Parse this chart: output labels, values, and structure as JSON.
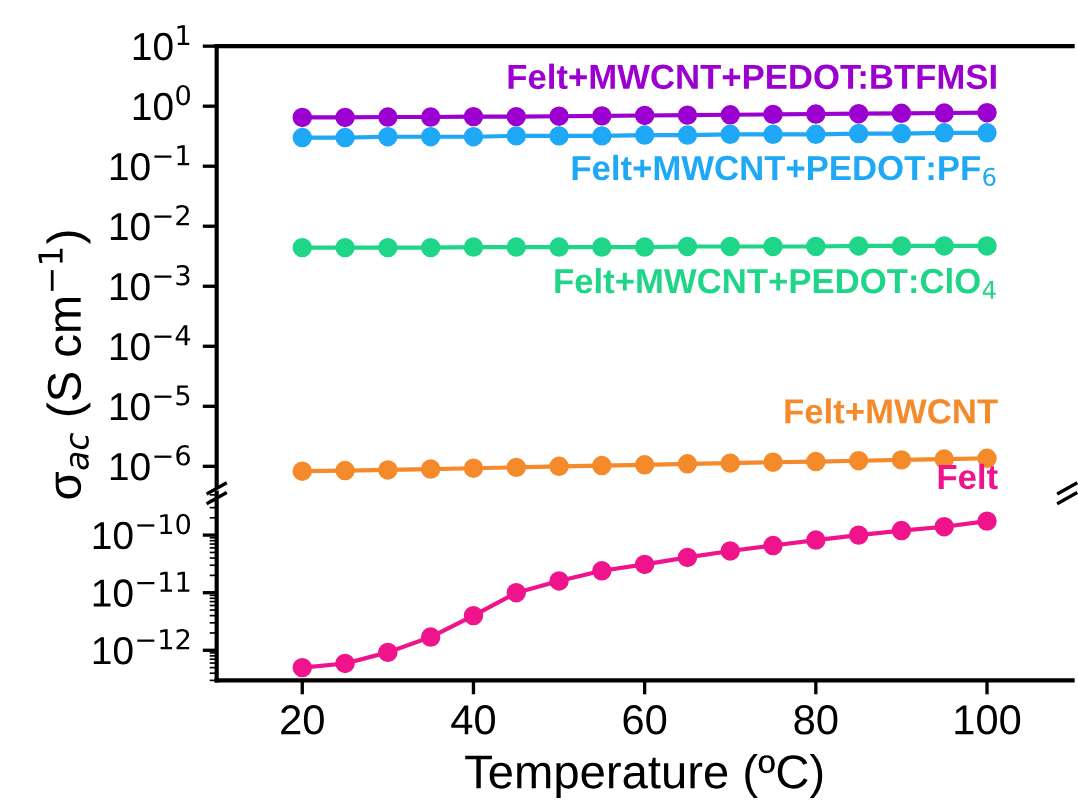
{
  "chart_data": [
    {
      "type": "line",
      "ylabel": "σ$_{ac}$ (S cm$^{−1}$)",
      "log": "y",
      "marker": "circle",
      "grid": false,
      "legend": false,
      "tick_labels": "y",
      "x": [
        20,
        25,
        30,
        35,
        40,
        45,
        50,
        55,
        60,
        65,
        70,
        75,
        80,
        85,
        90,
        95,
        100
      ],
      "xlim": [
        10,
        110
      ],
      "ylim": [
        4.7e-07,
        10
      ],
      "yticks": [
        {
          "value": 1e-06,
          "label": "10$^{−6}$"
        },
        {
          "value": 1e-05,
          "label": "10$^{−5}$"
        },
        {
          "value": 0.0001,
          "label": "10$^{−4}$"
        },
        {
          "value": 0.001,
          "label": "10$^{−3}$"
        },
        {
          "value": 0.01,
          "label": "10$^{−2}$"
        },
        {
          "value": 0.1,
          "label": "10$^{−1}$"
        },
        {
          "value": 1,
          "label": "10$^{0}$"
        },
        {
          "value": 10,
          "label": "10$^{1}$"
        }
      ],
      "series": [
        {
          "name": "Felt+MWCNT+PEDOT:BTFMSI",
          "color": "#9b00d0",
          "values": [
            0.65,
            0.65,
            0.66,
            0.66,
            0.67,
            0.67,
            0.68,
            0.69,
            0.7,
            0.71,
            0.72,
            0.73,
            0.74,
            0.75,
            0.76,
            0.77,
            0.78
          ]
        },
        {
          "name": "Felt+MWCNT+PEDOT:PF$_{6}$",
          "color": "#1ea8f5",
          "values": [
            0.3,
            0.3,
            0.31,
            0.31,
            0.31,
            0.32,
            0.32,
            0.32,
            0.33,
            0.33,
            0.34,
            0.34,
            0.34,
            0.35,
            0.35,
            0.36,
            0.36
          ]
        },
        {
          "name": "Felt+MWCNT+PEDOT:ClO$_{4}$",
          "color": "#1fd688",
          "values": [
            0.0044,
            0.0044,
            0.0044,
            0.0044,
            0.0045,
            0.0045,
            0.0045,
            0.0045,
            0.0045,
            0.0046,
            0.0046,
            0.0046,
            0.0046,
            0.0047,
            0.0047,
            0.0047,
            0.0047
          ]
        },
        {
          "name": "Felt+MWCNT",
          "color": "#f58a2a",
          "values": [
            8.3e-07,
            8.5e-07,
            8.7e-07,
            9e-07,
            9.3e-07,
            9.6e-07,
            1e-06,
            1.03e-06,
            1.06e-06,
            1.1e-06,
            1.13e-06,
            1.17e-06,
            1.2e-06,
            1.24e-06,
            1.28e-06,
            1.32e-06,
            1.36e-06
          ]
        }
      ]
    },
    {
      "type": "line",
      "xlabel": "Temperature (ºC)",
      "log": "y",
      "marker": "circle",
      "grid": false,
      "legend": false,
      "x": [
        20,
        25,
        30,
        35,
        40,
        45,
        50,
        55,
        60,
        65,
        70,
        75,
        80,
        85,
        90,
        95,
        100
      ],
      "xlim": [
        10,
        110
      ],
      "xticks": [
        20,
        40,
        60,
        80,
        100
      ],
      "ylim": [
        3e-13,
        5.5e-10
      ],
      "yticks": [
        {
          "value": 1e-12,
          "label": "10$^{−12}$"
        },
        {
          "value": 1e-11,
          "label": "10$^{−11}$"
        },
        {
          "value": 1e-10,
          "label": "10$^{−10}$"
        }
      ],
      "series": [
        {
          "name": "Felt",
          "color": "#f0148c",
          "values": [
            5e-13,
            5.9e-13,
            9.2e-13,
            1.7e-12,
            4e-12,
            1e-11,
            1.6e-11,
            2.4e-11,
            3.1e-11,
            4.1e-11,
            5.3e-11,
            6.6e-11,
            8.2e-11,
            1e-10,
            1.2e-10,
            1.4e-10,
            1.75e-10
          ]
        }
      ]
    }
  ]
}
